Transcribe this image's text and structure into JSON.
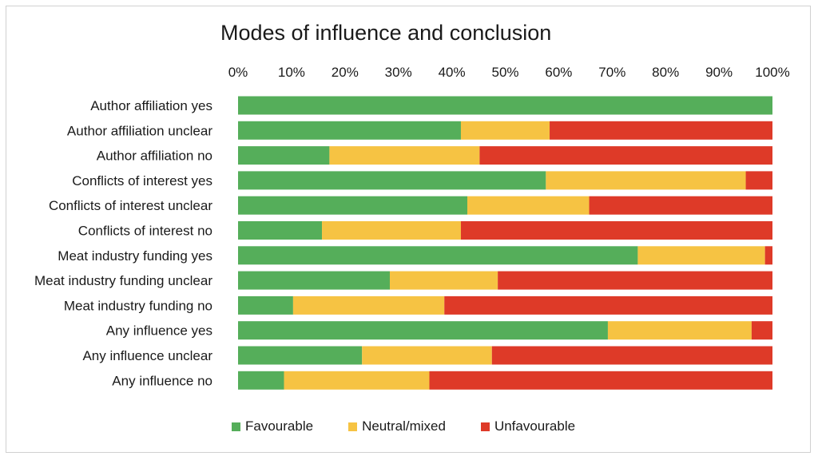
{
  "chart_data": {
    "type": "bar",
    "orientation": "horizontal",
    "stacked": true,
    "percent_stacked": true,
    "title": "Modes of influence and conclusion",
    "xlabel": "",
    "ylabel": "",
    "xlim": [
      0,
      100
    ],
    "x_tick_labels": [
      "0%",
      "10%",
      "20%",
      "30%",
      "40%",
      "50%",
      "60%",
      "70%",
      "80%",
      "90%",
      "100%"
    ],
    "grid": false,
    "legend_position": "bottom",
    "categories": [
      "Author affiliation yes",
      "Author affiliation unclear",
      "Author affiliation no",
      "Conflicts of interest yes",
      "Conflicts of interest unclear",
      "Conflicts of interest no",
      "Meat industry funding yes",
      "Meat industry funding unclear",
      "Meat industry funding no",
      "Any influence yes",
      "Any influence unclear",
      "Any influence no"
    ],
    "series": [
      {
        "name": "Favourable",
        "color": "#55ae5a",
        "values": [
          100,
          41.7,
          17.1,
          57.6,
          42.9,
          15.7,
          74.8,
          28.4,
          10.3,
          69.2,
          23.2,
          8.6
        ]
      },
      {
        "name": "Neutral/mixed",
        "color": "#f6c343",
        "values": [
          0,
          16.6,
          28.1,
          37.4,
          22.8,
          26.0,
          23.8,
          20.2,
          28.3,
          26.9,
          24.3,
          27.2
        ]
      },
      {
        "name": "Unfavourable",
        "color": "#de3a28",
        "values": [
          0,
          41.7,
          54.8,
          5.0,
          34.3,
          58.3,
          1.4,
          51.4,
          61.4,
          3.9,
          52.5,
          64.2
        ]
      }
    ]
  }
}
